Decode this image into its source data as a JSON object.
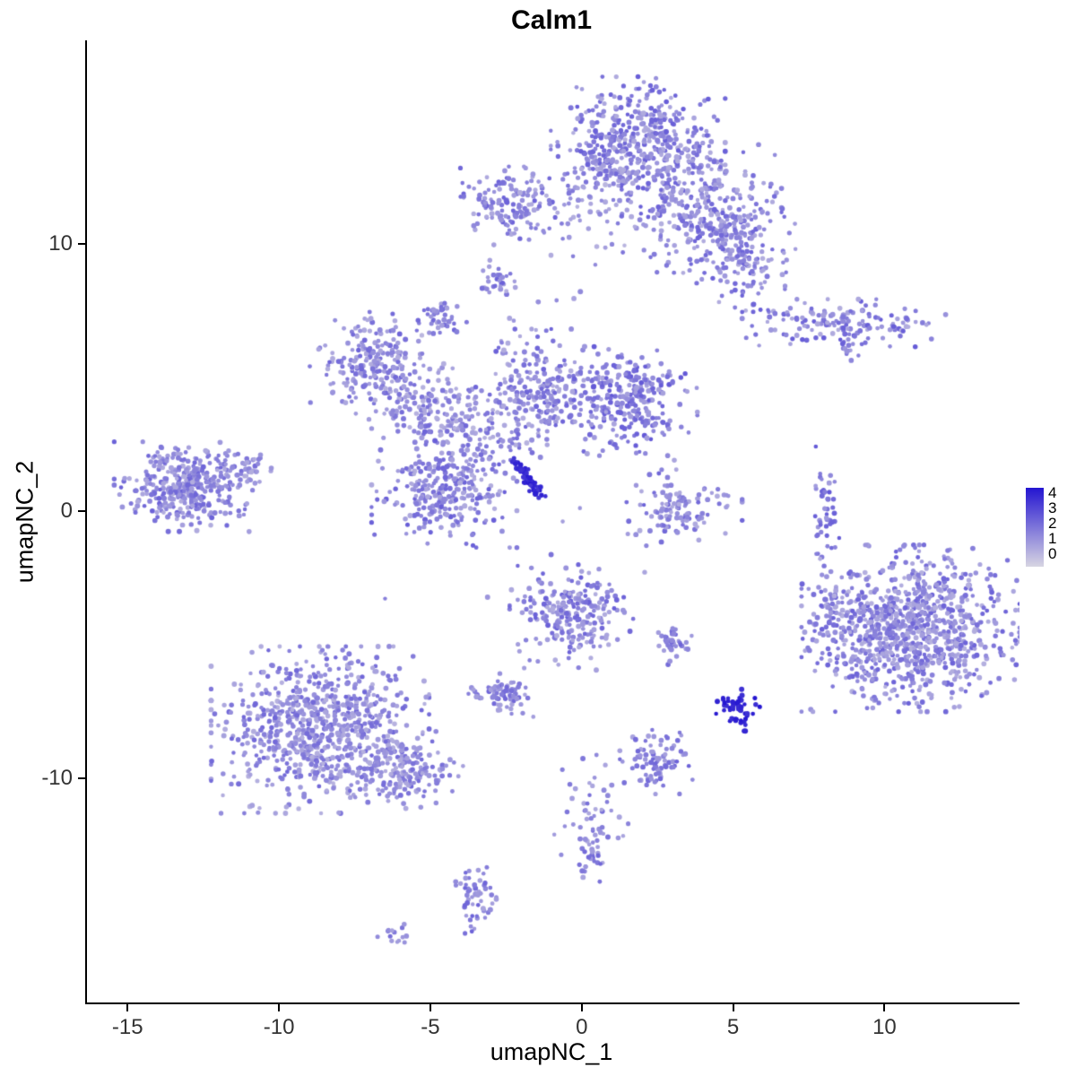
{
  "chart_data": {
    "type": "scatter",
    "title": "Calm1",
    "xlabel": "umapNC_1",
    "ylabel": "umapNC_2",
    "xlim": [
      -16.4,
      14.4
    ],
    "ylim": [
      -18.4,
      17.6
    ],
    "x_ticks": [
      -15,
      -10,
      -5,
      0,
      5,
      10
    ],
    "y_ticks": [
      -10,
      0,
      10
    ],
    "grid": false,
    "legend_position": "right",
    "colorbar": {
      "ticks": [
        4,
        3,
        2,
        1,
        0
      ],
      "vmin": 0,
      "vmax": 4,
      "low": "#d7d5e2",
      "high": "#2415d1"
    },
    "point_radius": 2.6,
    "clusters": [
      {
        "name": "top-main",
        "cx": 1.8,
        "cy": 13.6,
        "sx": 1.2,
        "sy": 1.1,
        "n": 520,
        "t": [
          0.2,
          0.62
        ]
      },
      {
        "name": "top-right-arm",
        "cx": 3.9,
        "cy": 11.3,
        "sx": 1.1,
        "sy": 1.0,
        "n": 260,
        "t": [
          0.2,
          0.6
        ]
      },
      {
        "name": "top-right-lobe",
        "cx": 5.2,
        "cy": 9.6,
        "sx": 0.75,
        "sy": 0.9,
        "n": 170,
        "t": [
          0.2,
          0.6
        ]
      },
      {
        "name": "top-left-arm",
        "cx": -2.4,
        "cy": 11.5,
        "sx": 0.8,
        "sy": 0.55,
        "n": 130,
        "t": [
          0.2,
          0.6
        ]
      },
      {
        "name": "top-bridge",
        "cx": -0.2,
        "cy": 11.2,
        "sx": 1.3,
        "sy": 0.7,
        "n": 70,
        "t": [
          0.15,
          0.5
        ]
      },
      {
        "name": "blob-upper-a",
        "cx": -2.9,
        "cy": 8.7,
        "sx": 0.3,
        "sy": 0.25,
        "n": 28,
        "t": [
          0.25,
          0.6
        ]
      },
      {
        "name": "blob-upper-b",
        "cx": -4.7,
        "cy": 7.2,
        "sx": 0.35,
        "sy": 0.3,
        "n": 40,
        "t": [
          0.25,
          0.6
        ]
      },
      {
        "name": "right-band",
        "cx": 8.6,
        "cy": 7.0,
        "sx": 1.4,
        "sy": 0.38,
        "n": 150,
        "t": [
          0.2,
          0.65
        ]
      },
      {
        "name": "right-band-tail",
        "cx": 8.8,
        "cy": 6.0,
        "sx": 0.2,
        "sy": 0.3,
        "n": 10,
        "t": [
          0.2,
          0.55
        ]
      },
      {
        "name": "mid-left-lobe",
        "cx": -7.0,
        "cy": 5.6,
        "sx": 0.85,
        "sy": 0.8,
        "n": 200,
        "t": [
          0.2,
          0.6
        ]
      },
      {
        "name": "mid-left-arm",
        "cx": -5.6,
        "cy": 4.0,
        "sx": 0.8,
        "sy": 0.7,
        "n": 110,
        "t": [
          0.18,
          0.55
        ]
      },
      {
        "name": "mid-band",
        "cx": -3.6,
        "cy": 3.2,
        "sx": 1.0,
        "sy": 0.9,
        "n": 130,
        "t": [
          0.15,
          0.55
        ]
      },
      {
        "name": "mid-center",
        "cx": -1.4,
        "cy": 4.4,
        "sx": 0.9,
        "sy": 1.0,
        "n": 230,
        "t": [
          0.2,
          0.6
        ]
      },
      {
        "name": "mid-right-lobe",
        "cx": 1.6,
        "cy": 4.1,
        "sx": 0.9,
        "sy": 0.85,
        "n": 280,
        "t": [
          0.25,
          0.65
        ]
      },
      {
        "name": "mid-lower-dense",
        "cx": -4.6,
        "cy": 0.9,
        "sx": 1.0,
        "sy": 0.95,
        "n": 300,
        "t": [
          0.2,
          0.62
        ]
      },
      {
        "name": "dark-streak",
        "line": [
          -2.3,
          1.9,
          -1.4,
          0.5
        ],
        "jitter": 0.08,
        "n": 70,
        "t": [
          0.8,
          1.0
        ]
      },
      {
        "name": "left-cluster",
        "cx": -13.1,
        "cy": 0.9,
        "sx": 1.0,
        "sy": 0.7,
        "n": 380,
        "t": [
          0.2,
          0.6
        ]
      },
      {
        "name": "left-cluster-tail",
        "cx": -11.3,
        "cy": 1.6,
        "sx": 0.5,
        "sy": 0.4,
        "n": 40,
        "t": [
          0.2,
          0.5
        ]
      },
      {
        "name": "center-right-small",
        "cx": 3.2,
        "cy": 0.1,
        "sx": 0.85,
        "sy": 0.6,
        "n": 120,
        "t": [
          0.2,
          0.6
        ]
      },
      {
        "name": "right-thin",
        "cx": 8.0,
        "cy": 0.0,
        "sx": 0.2,
        "sy": 1.0,
        "n": 50,
        "t": [
          0.25,
          0.65
        ]
      },
      {
        "name": "big-right",
        "cx": 10.8,
        "cy": -4.4,
        "sx": 1.5,
        "sy": 1.3,
        "n": 950,
        "t": [
          0.18,
          0.6
        ]
      },
      {
        "name": "big-right-west",
        "cx": 8.4,
        "cy": -4.2,
        "sx": 0.5,
        "sy": 1.0,
        "n": 70,
        "t": [
          0.2,
          0.6
        ]
      },
      {
        "name": "center-low",
        "cx": -0.4,
        "cy": -3.8,
        "sx": 0.85,
        "sy": 0.9,
        "n": 240,
        "t": [
          0.2,
          0.62
        ]
      },
      {
        "name": "blob-mid-right",
        "cx": 2.9,
        "cy": -5.0,
        "sx": 0.28,
        "sy": 0.33,
        "n": 40,
        "t": [
          0.25,
          0.6
        ]
      },
      {
        "name": "dark-blob",
        "cx": 5.1,
        "cy": -7.4,
        "sx": 0.3,
        "sy": 0.35,
        "n": 50,
        "t": [
          0.85,
          1.0
        ]
      },
      {
        "name": "small-center-left",
        "cx": -2.6,
        "cy": -6.8,
        "sx": 0.5,
        "sy": 0.38,
        "n": 75,
        "t": [
          0.25,
          0.6
        ]
      },
      {
        "name": "bottom-left-big",
        "cx": -8.7,
        "cy": -8.2,
        "sx": 1.5,
        "sy": 1.3,
        "n": 820,
        "t": [
          0.18,
          0.58
        ]
      },
      {
        "name": "bottom-left-arm",
        "cx": -5.9,
        "cy": -9.7,
        "sx": 0.8,
        "sy": 0.6,
        "n": 160,
        "t": [
          0.2,
          0.55
        ]
      },
      {
        "name": "bottom-small",
        "cx": 2.4,
        "cy": -9.4,
        "sx": 0.5,
        "sy": 0.5,
        "n": 85,
        "t": [
          0.25,
          0.6
        ]
      },
      {
        "name": "trail",
        "cx": 0.2,
        "cy": -11.3,
        "sx": 0.7,
        "sy": 0.9,
        "n": 45,
        "t": [
          0.2,
          0.55
        ]
      },
      {
        "name": "bottom-mid-blob",
        "cx": 0.2,
        "cy": -12.8,
        "sx": 0.3,
        "sy": 0.45,
        "n": 30,
        "t": [
          0.25,
          0.6
        ]
      },
      {
        "name": "bottom-left-small",
        "cx": -3.6,
        "cy": -14.4,
        "sx": 0.3,
        "sy": 0.6,
        "n": 55,
        "t": [
          0.25,
          0.6
        ]
      },
      {
        "name": "tiny-bottom",
        "cx": -6.2,
        "cy": -15.9,
        "sx": 0.3,
        "sy": 0.18,
        "n": 14,
        "t": [
          0.25,
          0.55
        ]
      },
      {
        "name": "sparse-mid",
        "cx": 0.0,
        "cy": -1.0,
        "sx": 4.5,
        "sy": 1.6,
        "n": 12,
        "t": [
          0.2,
          0.5
        ]
      },
      {
        "name": "sparse-upper",
        "cx": -1.5,
        "cy": 7.5,
        "sx": 1.6,
        "sy": 1.2,
        "n": 15,
        "t": [
          0.15,
          0.45
        ]
      }
    ]
  }
}
